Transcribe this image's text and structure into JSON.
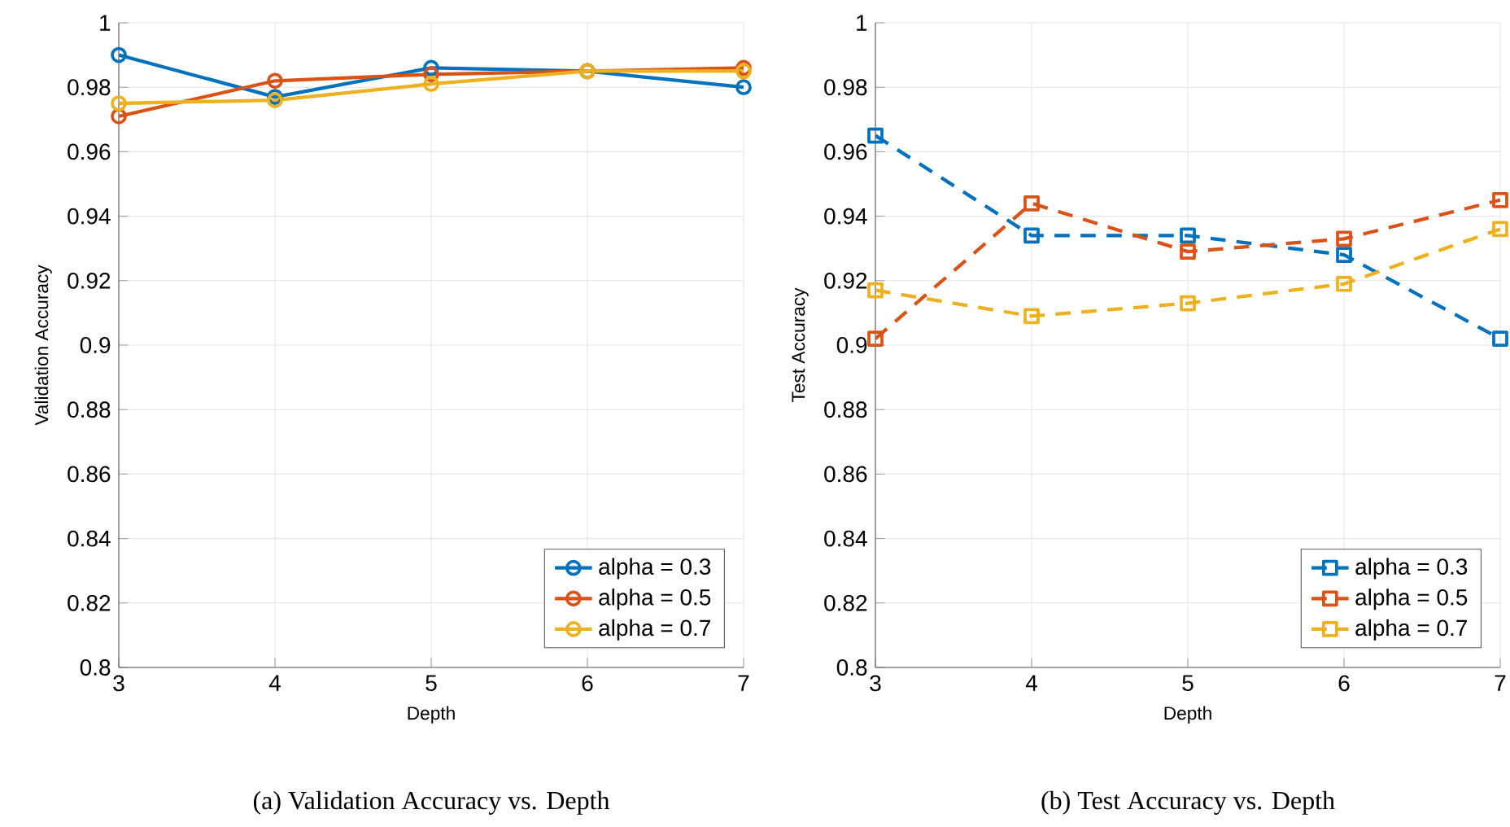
{
  "chart_data": [
    {
      "type": "line",
      "xlabel": "Depth",
      "ylabel": "Validation Accuracy",
      "x": [
        3,
        4,
        5,
        6,
        7
      ],
      "xlim": [
        3,
        7
      ],
      "ylim": [
        0.8,
        1
      ],
      "xticks": [
        3,
        4,
        5,
        6,
        7
      ],
      "yticks": [
        0.8,
        0.82,
        0.84,
        0.86,
        0.88,
        0.9,
        0.92,
        0.94,
        0.96,
        0.98,
        1
      ],
      "grid": true,
      "legend": "bottom right",
      "marker": "circle",
      "line_style": "solid",
      "series": [
        {
          "name": "alpha = 0.3",
          "color": "#0072bd",
          "values": [
            0.99,
            0.977,
            0.986,
            0.985,
            0.98
          ]
        },
        {
          "name": "alpha = 0.5",
          "color": "#d95319",
          "values": [
            0.971,
            0.982,
            0.984,
            0.985,
            0.986
          ]
        },
        {
          "name": "alpha = 0.7",
          "color": "#edb120",
          "values": [
            0.975,
            0.976,
            0.981,
            0.985,
            0.985
          ]
        }
      ],
      "annotations": [
        "(a) Validation Accuracy vs. Depth"
      ]
    },
    {
      "type": "line",
      "xlabel": "Depth",
      "ylabel": "Test Accuracy",
      "x": [
        3,
        4,
        5,
        6,
        7
      ],
      "xlim": [
        3,
        7
      ],
      "ylim": [
        0.8,
        1
      ],
      "xticks": [
        3,
        4,
        5,
        6,
        7
      ],
      "yticks": [
        0.8,
        0.82,
        0.84,
        0.86,
        0.88,
        0.9,
        0.92,
        0.94,
        0.96,
        0.98,
        1
      ],
      "grid": true,
      "legend": "bottom right",
      "marker": "square",
      "line_style": "dashed",
      "series": [
        {
          "name": "alpha = 0.3",
          "color": "#0072bd",
          "values": [
            0.965,
            0.934,
            0.934,
            0.928,
            0.902
          ]
        },
        {
          "name": "alpha = 0.5",
          "color": "#d95319",
          "values": [
            0.902,
            0.944,
            0.929,
            0.933,
            0.945
          ]
        },
        {
          "name": "alpha = 0.7",
          "color": "#edb120",
          "values": [
            0.917,
            0.909,
            0.913,
            0.919,
            0.936
          ]
        }
      ],
      "annotations": [
        "(b) Test Accuracy vs. Depth"
      ]
    }
  ]
}
